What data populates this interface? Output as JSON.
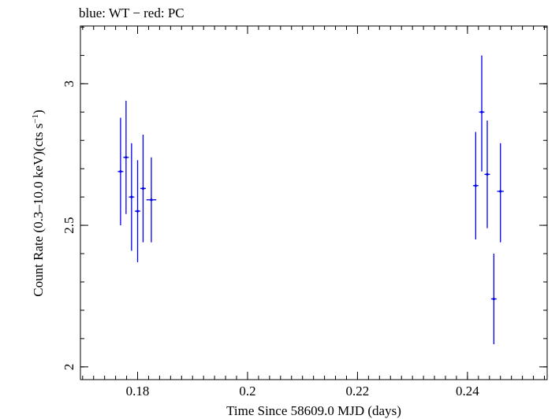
{
  "chart_data": {
    "type": "scatter",
    "title": "blue: WT − red: PC",
    "xlabel": "Time Since 58609.0 MJD (days)",
    "ylabel_main": "Count Rate (0.3–10.0 keV)(cts s",
    "ylabel_sup": "−1",
    "ylabel_close": ")",
    "xlim": [
      0.1696,
      0.2545
    ],
    "ylim": [
      1.955,
      3.204
    ],
    "x_ticks": [
      {
        "value": 0.18,
        "label": "0.18"
      },
      {
        "value": 0.2,
        "label": "0.2"
      },
      {
        "value": 0.22,
        "label": "0.22"
      },
      {
        "value": 0.24,
        "label": "0.24"
      }
    ],
    "y_ticks": [
      {
        "value": 2.0,
        "label": "2"
      },
      {
        "value": 2.5,
        "label": "2.5"
      },
      {
        "value": 3.0,
        "label": "3"
      }
    ],
    "x_minor_step": 0.002,
    "y_minor_step": 0.1,
    "grid": false,
    "series": [
      {
        "color": "#0000ee",
        "points": [
          {
            "x": 0.1769,
            "y": 2.69,
            "xerr": 0.0005,
            "ylo": 2.5,
            "yhi": 2.88
          },
          {
            "x": 0.1779,
            "y": 2.74,
            "xerr": 0.0005,
            "ylo": 2.54,
            "yhi": 2.94
          },
          {
            "x": 0.1789,
            "y": 2.6,
            "xerr": 0.0005,
            "ylo": 2.41,
            "yhi": 2.79
          },
          {
            "x": 0.18,
            "y": 2.55,
            "xerr": 0.0005,
            "ylo": 2.37,
            "yhi": 2.73
          },
          {
            "x": 0.181,
            "y": 2.63,
            "xerr": 0.0005,
            "ylo": 2.44,
            "yhi": 2.82
          },
          {
            "x": 0.1825,
            "y": 2.59,
            "xerr": 0.0009,
            "ylo": 2.44,
            "yhi": 2.74
          },
          {
            "x": 0.2415,
            "y": 2.64,
            "xerr": 0.0005,
            "ylo": 2.45,
            "yhi": 2.83
          },
          {
            "x": 0.2426,
            "y": 2.9,
            "xerr": 0.0005,
            "ylo": 2.69,
            "yhi": 3.1
          },
          {
            "x": 0.2436,
            "y": 2.68,
            "xerr": 0.0005,
            "ylo": 2.49,
            "yhi": 2.87
          },
          {
            "x": 0.2448,
            "y": 2.24,
            "xerr": 0.0005,
            "ylo": 2.08,
            "yhi": 2.4
          },
          {
            "x": 0.246,
            "y": 2.62,
            "xerr": 0.0006,
            "ylo": 2.44,
            "yhi": 2.79
          }
        ]
      }
    ]
  }
}
